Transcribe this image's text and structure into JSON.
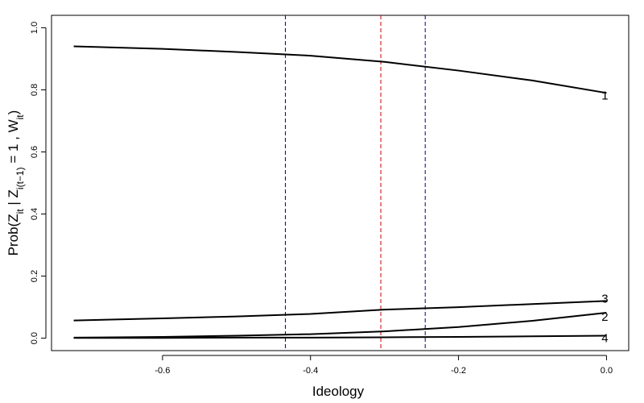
{
  "chart_data": {
    "type": "line",
    "xlabel": "Ideology",
    "ylabel": {
      "text": "Prob(Z",
      "sub1": "it",
      "mid1": " | Z",
      "sub2": "i(t−1)",
      "mid2": " = 1 , W",
      "sub3": "it",
      "end": ")"
    },
    "xlim": [
      -0.75,
      0.03
    ],
    "ylim": [
      -0.04,
      1.04
    ],
    "x_ticks": [
      -0.6,
      -0.4,
      -0.2,
      0.0
    ],
    "x_tick_labels": [
      "-0.6",
      "-0.4",
      "-0.2",
      "0.0"
    ],
    "y_ticks": [
      0.0,
      0.2,
      0.4,
      0.6,
      0.8,
      1.0
    ],
    "y_tick_labels": [
      "0.0",
      "0.2",
      "0.4",
      "0.6",
      "0.8",
      "1.0"
    ],
    "grid": false,
    "reference_lines": [
      {
        "x": -0.434,
        "color": "#00008b",
        "style": "dashed"
      },
      {
        "x": -0.305,
        "color": "#cc0000",
        "style": "dashed"
      },
      {
        "x": -0.245,
        "color": "#00008b",
        "style": "dashed"
      }
    ],
    "x": [
      -0.72,
      -0.6,
      -0.5,
      -0.4,
      -0.3,
      -0.2,
      -0.1,
      0.0
    ],
    "series": [
      {
        "label": "1",
        "values": [
          0.94,
          0.932,
          0.922,
          0.91,
          0.89,
          0.862,
          0.83,
          0.79
        ]
      },
      {
        "label": "2",
        "values": [
          0.002,
          0.004,
          0.008,
          0.013,
          0.022,
          0.036,
          0.056,
          0.082
        ]
      },
      {
        "label": "3",
        "values": [
          0.057,
          0.064,
          0.07,
          0.078,
          0.092,
          0.1,
          0.11,
          0.12
        ]
      },
      {
        "label": "4",
        "values": [
          0.001,
          0.001,
          0.002,
          0.002,
          0.003,
          0.004,
          0.006,
          0.008
        ]
      }
    ],
    "line_color": "#000000"
  }
}
